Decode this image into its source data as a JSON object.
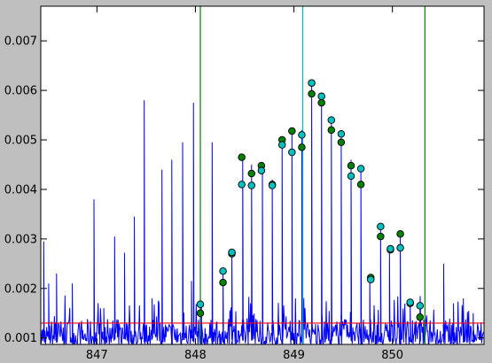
{
  "chart_data": {
    "type": "line",
    "background": "#bfbfbf",
    "plot_background": "#ffffff",
    "xlim": [
      846.43,
      850.93
    ],
    "ylim": [
      0.00087,
      0.0077
    ],
    "grid": false,
    "x_ticks": [
      847,
      848,
      849,
      850
    ],
    "x_tick_labels": [
      "847",
      "848",
      "849",
      "850"
    ],
    "y_ticks": [
      0.001,
      0.002,
      0.003,
      0.004,
      0.005,
      0.006,
      0.007
    ],
    "y_tick_labels": [
      "0.001",
      "0.002",
      "0.003",
      "0.004",
      "0.005",
      "0.006",
      "0.007"
    ],
    "spectrum": {
      "color": "#0000ff",
      "baseline_range": [
        0.00087,
        0.0013
      ],
      "peaks": [
        [
          846.46,
          0.00295
        ],
        [
          846.51,
          0.0021
        ],
        [
          846.59,
          0.0023
        ],
        [
          846.75,
          0.0021
        ],
        [
          846.97,
          0.0038
        ],
        [
          847.07,
          0.0016
        ],
        [
          847.18,
          0.00305
        ],
        [
          847.28,
          0.00272
        ],
        [
          847.38,
          0.00345
        ],
        [
          847.48,
          0.0058
        ],
        [
          847.56,
          0.0018
        ],
        [
          847.66,
          0.0044
        ],
        [
          847.76,
          0.0046
        ],
        [
          847.87,
          0.00495
        ],
        [
          847.96,
          0.00215
        ],
        [
          847.98,
          0.00575
        ],
        [
          848.06,
          0.00175
        ],
        [
          848.17,
          0.00495
        ],
        [
          848.28,
          0.0024
        ],
        [
          848.37,
          0.00275
        ],
        [
          848.48,
          0.0047
        ],
        [
          848.57,
          0.0045
        ],
        [
          848.68,
          0.0045
        ],
        [
          848.78,
          0.0042
        ],
        [
          848.88,
          0.00505
        ],
        [
          848.98,
          0.0052
        ],
        [
          849.08,
          0.0052
        ],
        [
          849.18,
          0.0062
        ],
        [
          849.28,
          0.0059
        ],
        [
          849.38,
          0.0054
        ],
        [
          849.48,
          0.0051
        ],
        [
          849.58,
          0.0046
        ],
        [
          849.68,
          0.0044
        ],
        [
          849.77,
          0.00225
        ],
        [
          849.88,
          0.0032
        ],
        [
          849.97,
          0.0028
        ],
        [
          850.08,
          0.00305
        ],
        [
          850.18,
          0.00175
        ],
        [
          850.28,
          0.0017
        ],
        [
          850.52,
          0.0025
        ],
        [
          850.62,
          0.0017
        ],
        [
          850.72,
          0.0018
        ],
        [
          850.82,
          0.0015
        ]
      ]
    },
    "hline": {
      "y": 0.0013,
      "color": "#ff0000"
    },
    "vlines": [
      {
        "x": 848.05,
        "color": "#008000"
      },
      {
        "x": 849.09,
        "color": "#00bfbf"
      },
      {
        "x": 850.33,
        "color": "#008000"
      }
    ],
    "series": [
      {
        "color": "#008000",
        "marker": "circle",
        "x": [
          848.05,
          848.28,
          848.37,
          848.47,
          848.57,
          848.67,
          848.78,
          848.88,
          848.98,
          849.08,
          849.18,
          849.28,
          849.38,
          849.48,
          849.58,
          849.68,
          849.78,
          849.88,
          849.98,
          850.08,
          850.18,
          850.28
        ],
        "y": [
          0.0015,
          0.00212,
          0.0027,
          0.00465,
          0.00432,
          0.00448,
          0.0041,
          0.005,
          0.00518,
          0.00485,
          0.00593,
          0.00575,
          0.0052,
          0.00495,
          0.00448,
          0.0041,
          0.00222,
          0.00305,
          0.00278,
          0.0031,
          0.0017,
          0.00142
        ]
      },
      {
        "color": "#00bfbf",
        "marker": "circle",
        "x": [
          848.05,
          848.28,
          848.37,
          848.47,
          848.57,
          848.67,
          848.78,
          848.88,
          848.98,
          849.08,
          849.18,
          849.28,
          849.38,
          849.48,
          849.58,
          849.68,
          849.78,
          849.88,
          849.98,
          850.08,
          850.18,
          850.28
        ],
        "y": [
          0.00168,
          0.00235,
          0.00273,
          0.0041,
          0.00408,
          0.00438,
          0.00408,
          0.0049,
          0.00475,
          0.0051,
          0.00615,
          0.00588,
          0.0054,
          0.00512,
          0.00427,
          0.00442,
          0.00218,
          0.00325,
          0.0028,
          0.00282,
          0.00172,
          0.00165
        ]
      }
    ]
  }
}
